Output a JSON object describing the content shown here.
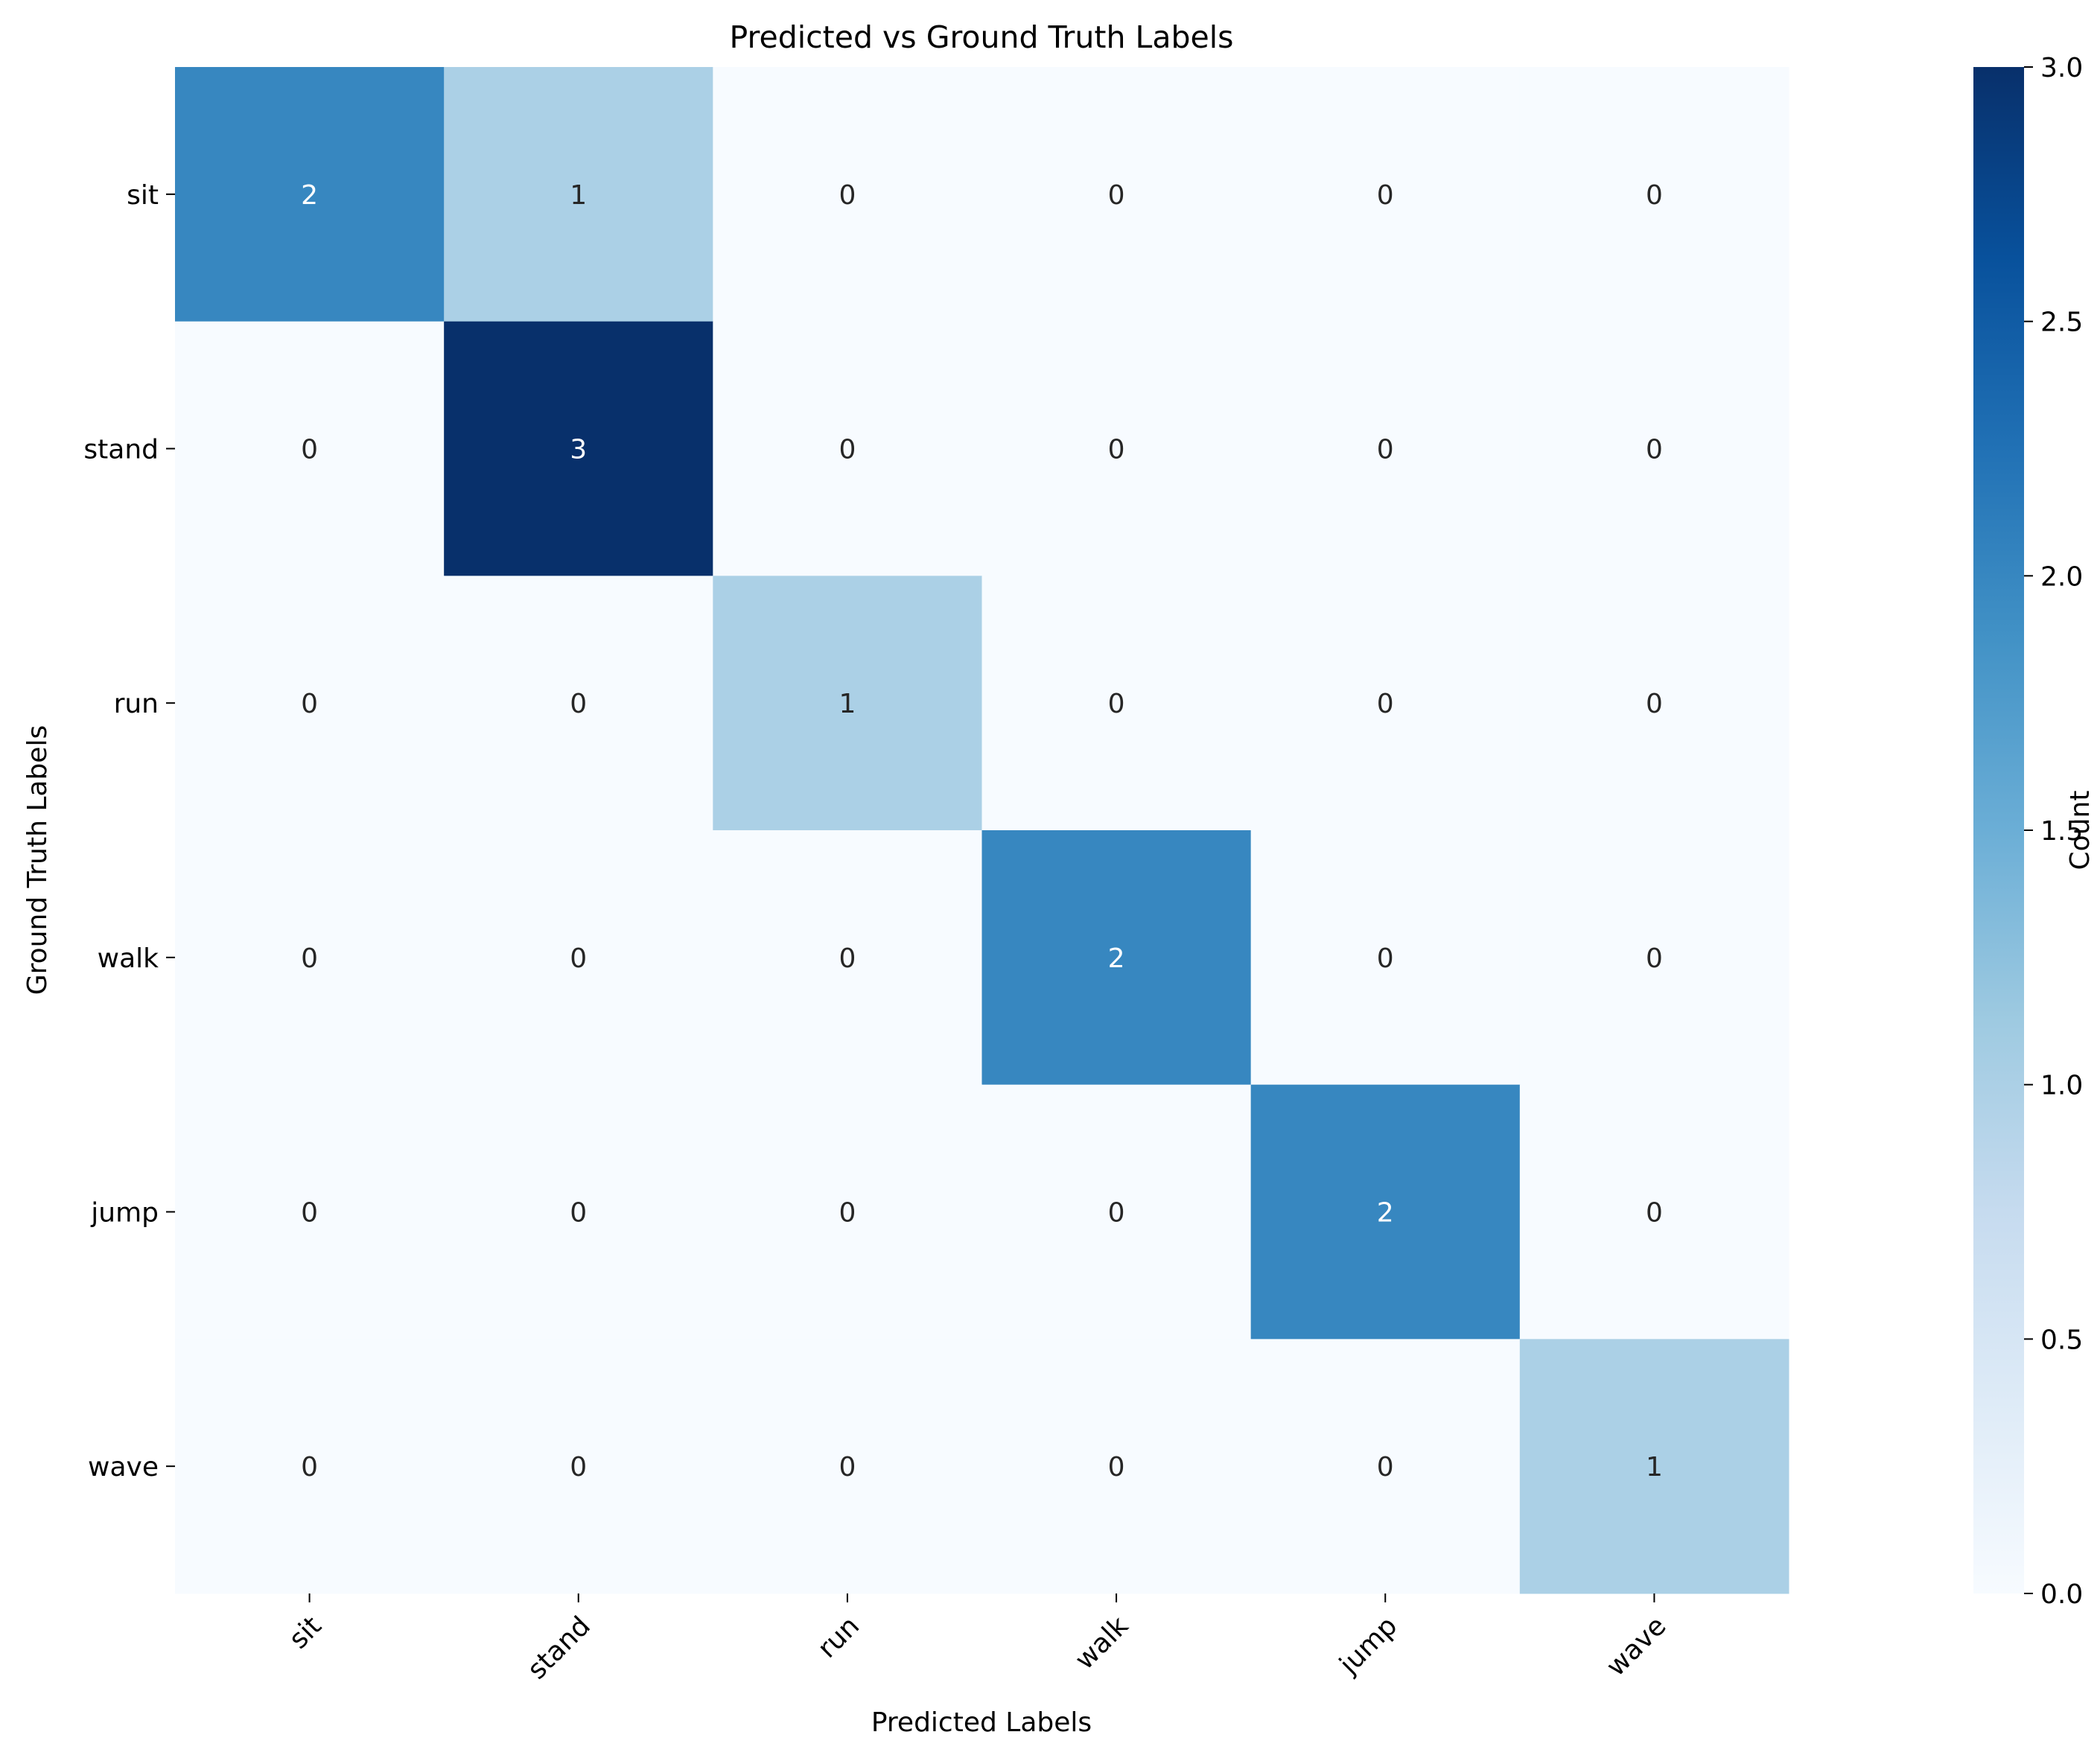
{
  "chart_data": {
    "type": "heatmap",
    "title": "Predicted vs Ground Truth Labels",
    "xlabel": "Predicted Labels",
    "ylabel": "Ground Truth Labels",
    "x_categories": [
      "sit",
      "stand",
      "run",
      "walk",
      "jump",
      "wave"
    ],
    "y_categories": [
      "sit",
      "stand",
      "run",
      "walk",
      "jump",
      "wave"
    ],
    "values": [
      [
        2,
        1,
        0,
        0,
        0,
        0
      ],
      [
        0,
        3,
        0,
        0,
        0,
        0
      ],
      [
        0,
        0,
        1,
        0,
        0,
        0
      ],
      [
        0,
        0,
        0,
        2,
        0,
        0
      ],
      [
        0,
        0,
        0,
        0,
        2,
        0
      ],
      [
        0,
        0,
        0,
        0,
        0,
        1
      ]
    ],
    "colorbar": {
      "label": "Count",
      "range": [
        0,
        3
      ],
      "ticks": [
        "0.0",
        "0.5",
        "1.0",
        "1.5",
        "2.0",
        "2.5",
        "3.0"
      ],
      "colormap": "Blues",
      "colors": [
        "#f7fbff",
        "#deebf7",
        "#c6dbef",
        "#9ecae1",
        "#6baed6",
        "#4292c6",
        "#2171b5",
        "#08519c",
        "#08306b"
      ]
    },
    "annotation_colors": {
      "dark_text": "#262626",
      "light_text": "#ffffff"
    }
  }
}
